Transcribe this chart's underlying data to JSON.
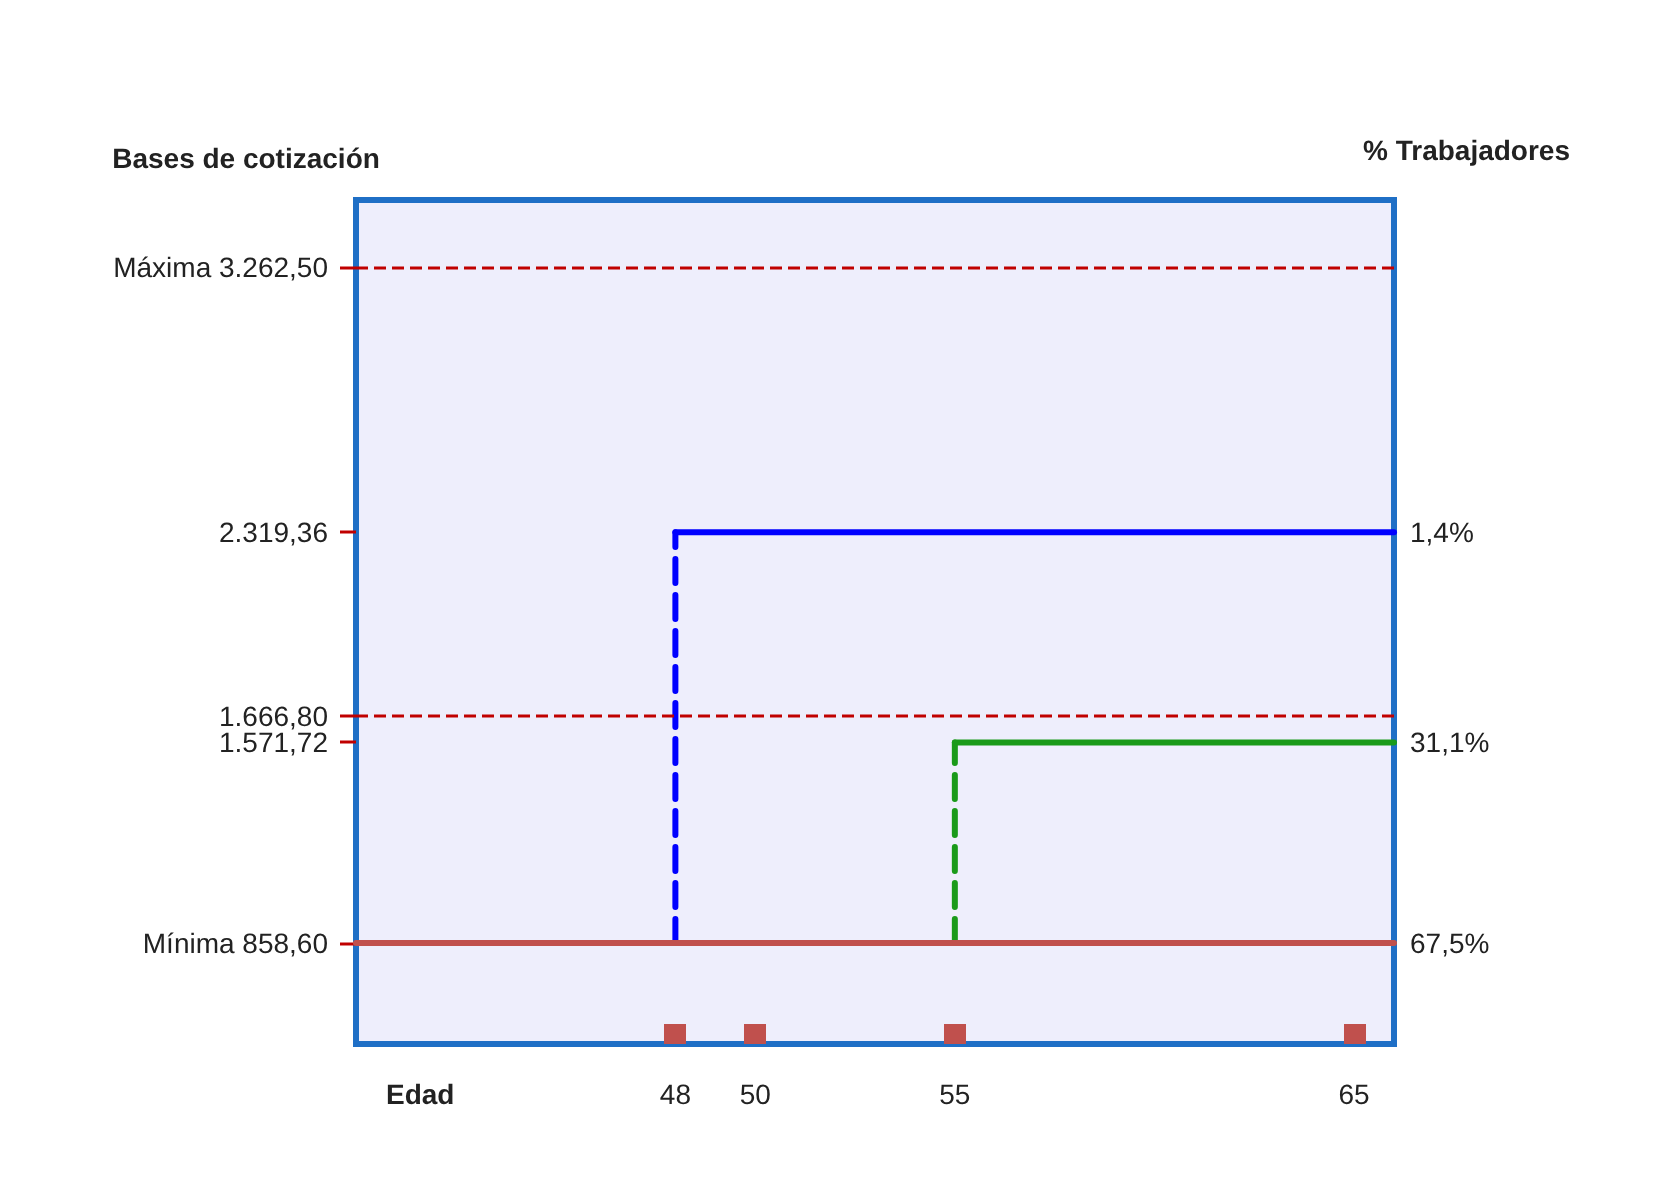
{
  "chart_data": {
    "type": "line",
    "ylabel": "Bases de cotización",
    "y2label": "% Trabajadores",
    "xlabel": "Edad",
    "xlim": [
      40,
      66
    ],
    "xticks": [
      48,
      50,
      55,
      65
    ],
    "ylim": [
      500,
      3500
    ],
    "yticks": [
      {
        "value": 3262.5,
        "label": "Máxima 3.262,50"
      },
      {
        "value": 2319.36,
        "label": "2.319,36"
      },
      {
        "value": 1666.8,
        "label": "1.666,80"
      },
      {
        "value": 1571.72,
        "label": "1.571,72"
      },
      {
        "value": 858.6,
        "label": "Mínima 858,60"
      }
    ],
    "series": [
      {
        "name": "1,4%",
        "color": "#0000ff",
        "x": [
          48,
          66
        ],
        "values": [
          2319.36,
          2319.36
        ],
        "line_style": "solid"
      },
      {
        "color": "#0000ff",
        "x": [
          48,
          48
        ],
        "values": [
          858.6,
          2319.36
        ],
        "line_style": "dashed"
      },
      {
        "name": "31,1%",
        "color": "#1a9a1a",
        "x": [
          55,
          66
        ],
        "values": [
          1571.72,
          1571.72
        ],
        "line_style": "solid"
      },
      {
        "color": "#1a9a1a",
        "x": [
          55,
          55
        ],
        "values": [
          858.6,
          1571.72
        ],
        "line_style": "dashed"
      },
      {
        "name": "67,5%",
        "color": "#c0504d",
        "x": [
          40,
          66
        ],
        "values": [
          858.6,
          858.6
        ],
        "line_style": "solid"
      }
    ],
    "ref_lines": [
      {
        "axis": "y",
        "value": 3262.5,
        "color": "#c00000",
        "line_style": "dashed"
      },
      {
        "axis": "y",
        "value": 1666.8,
        "color": "#c00000",
        "line_style": "dashed"
      }
    ],
    "marker": "none",
    "grid": false
  }
}
